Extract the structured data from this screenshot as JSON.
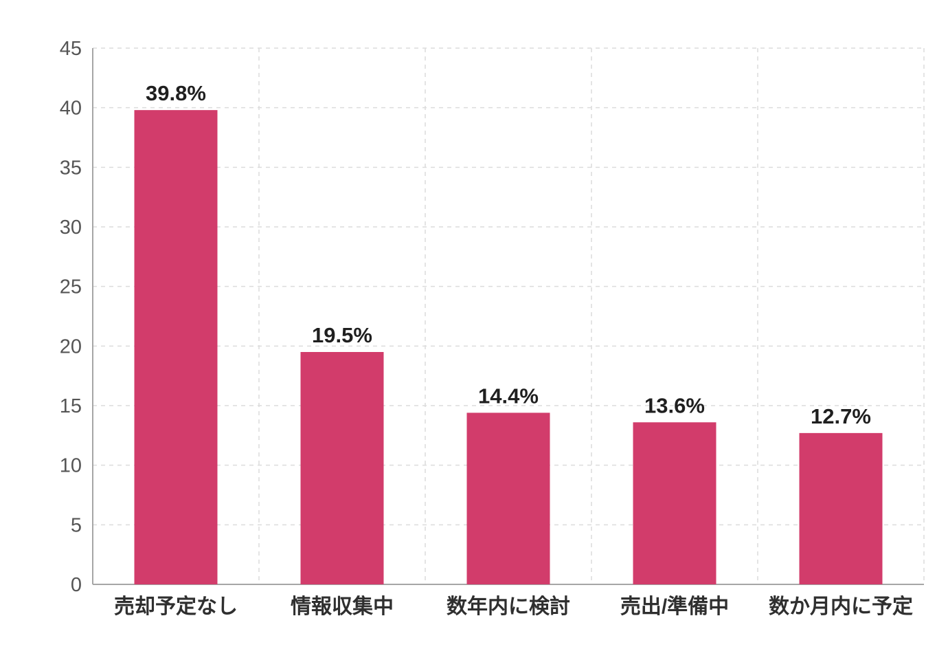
{
  "chart_data": {
    "type": "bar",
    "categories": [
      "売却予定なし",
      "情報収集中",
      "数年内に検討",
      "売出/準備中",
      "数か月内に予定"
    ],
    "values": [
      39.8,
      19.5,
      14.4,
      13.6,
      12.7
    ],
    "value_labels": [
      "39.8%",
      "19.5%",
      "14.4%",
      "13.6%",
      "12.7%"
    ],
    "title": "",
    "xlabel": "",
    "ylabel": "",
    "ylim": [
      0,
      45
    ],
    "yticks": [
      0,
      5,
      10,
      15,
      20,
      25,
      30,
      35,
      40,
      45
    ],
    "grid": true,
    "grid_style": "dashed",
    "legend": "none",
    "colors": {
      "bar": "#d23c6b",
      "grid": "#dcdcdc",
      "axis": "#a6a6a6",
      "tick_label": "#555555",
      "category_label": "#2f2f2f",
      "value_label": "#1f1f1f",
      "background": "#ffffff"
    }
  }
}
